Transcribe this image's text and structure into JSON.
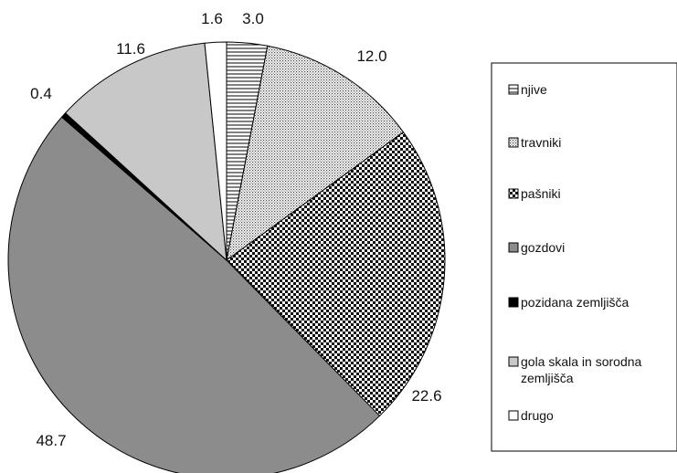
{
  "chart_data": {
    "type": "pie",
    "title": "",
    "start_angle_deg": 0,
    "direction": "clockwise",
    "legend_position": "right",
    "slices": [
      {
        "key": "njive",
        "label": "njive",
        "value": 3.0,
        "display": "3.0",
        "fill": "hlines"
      },
      {
        "key": "travniki",
        "label": "travniki",
        "value": 12.0,
        "display": "12.0",
        "fill": "dots"
      },
      {
        "key": "pasniki",
        "label": "pašniki",
        "value": 22.6,
        "display": "22.6",
        "fill": "checker"
      },
      {
        "key": "gozdovi",
        "label": "gozdovi",
        "value": 48.7,
        "display": "48.7",
        "fill": "#8c8c8c"
      },
      {
        "key": "pozidana",
        "label": "pozidana zemljišča",
        "value": 0.4,
        "display": "0.4",
        "fill": "#000000"
      },
      {
        "key": "gola_skala",
        "label": [
          "gola skala in sorodna",
          "zemljišča"
        ],
        "value": 11.6,
        "display": "11.6",
        "fill": "#c8c8c8"
      },
      {
        "key": "drugo",
        "label": "drugo",
        "value": 1.6,
        "display": "1.6",
        "fill": "#ffffff"
      }
    ]
  }
}
